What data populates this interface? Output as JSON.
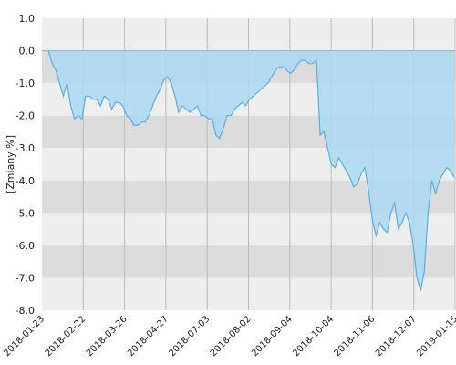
{
  "chart_data": {
    "type": "area",
    "title": "",
    "xlabel": "",
    "ylabel": "[Zmiany %]",
    "ylim": [
      -8.0,
      1.0
    ],
    "y_ticks": [
      "1.0",
      "0.0",
      "-1.0",
      "-2.0",
      "-3.0",
      "-4.0",
      "-5.0",
      "-6.0",
      "-7.0",
      "-8.0"
    ],
    "x_ticks": [
      "2018-01-23",
      "2018-02-22",
      "2018-03-26",
      "2018-04-27",
      "2018-07-03",
      "2018-08-02",
      "2018-09-04",
      "2018-10-04",
      "2018-11-06",
      "2018-12-07",
      "2019-01-15"
    ],
    "grid": "vertical lines at x ticks, alternating horizontal bands",
    "colors": {
      "line": "#5aaee6",
      "fill": "#aad8f0",
      "band_light": "#eeeeee",
      "band_dark": "#dcdcdc",
      "grid": "#bbbbbb"
    },
    "series": [
      {
        "values": [
          0.0,
          0.0,
          -0.4,
          -0.6,
          -1.0,
          -1.4,
          -1.0,
          -1.7,
          -2.1,
          -2.0,
          -2.1,
          -1.4,
          -1.4,
          -1.5,
          -1.5,
          -1.7,
          -1.4,
          -1.5,
          -1.8,
          -1.6,
          -1.6,
          -1.7,
          -2.0,
          -2.1,
          -2.3,
          -2.3,
          -2.2,
          -2.2,
          -2.0,
          -1.7,
          -1.4,
          -1.2,
          -0.9,
          -0.8,
          -1.0,
          -1.4,
          -1.9,
          -1.7,
          -1.8,
          -1.9,
          -1.8,
          -1.7,
          -2.0,
          -2.0,
          -2.1,
          -2.1,
          -2.6,
          -2.7,
          -2.4,
          -2.0,
          -2.0,
          -1.8,
          -1.7,
          -1.6,
          -1.7,
          -1.5,
          -1.4,
          -1.3,
          -1.2,
          -1.1,
          -1.0,
          -0.8,
          -0.6,
          -0.5,
          -0.5,
          -0.6,
          -0.7,
          -0.6,
          -0.4,
          -0.3,
          -0.3,
          -0.4,
          -0.4,
          -0.3,
          -2.6,
          -2.5,
          -3.0,
          -3.5,
          -3.6,
          -3.3,
          -3.5,
          -3.7,
          -3.9,
          -4.2,
          -4.1,
          -3.8,
          -3.6,
          -4.3,
          -5.2,
          -5.7,
          -5.3,
          -5.5,
          -5.6,
          -5.0,
          -4.7,
          -5.5,
          -5.3,
          -5.0,
          -5.3,
          -6.0,
          -7.0,
          -7.4,
          -6.8,
          -5.0,
          -4.0,
          -4.4,
          -4.0,
          -3.8,
          -3.6,
          -3.7,
          -3.9
        ]
      }
    ]
  }
}
